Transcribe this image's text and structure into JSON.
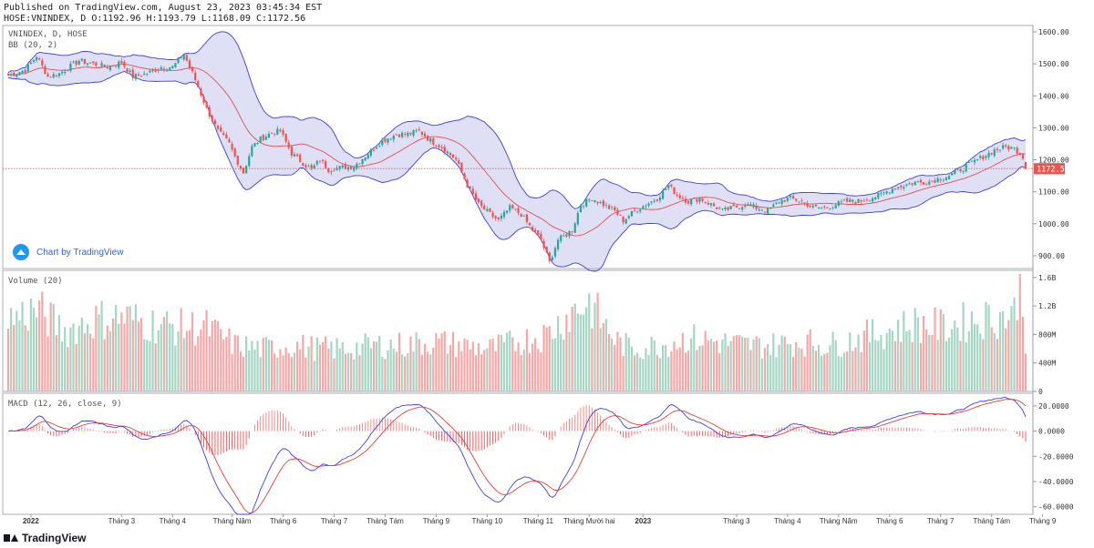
{
  "header": {
    "published": "Published on TradingView.com, August 23, 2023 03:45:34 EST",
    "ohlc": "HOSE:VNINDEX, D O:1192.96 H:1193.79 L:1168.09 C:1172.56"
  },
  "branding": {
    "watermark": "Chart by TradingView",
    "footer": "TradingView"
  },
  "colors": {
    "up": "#26a69a",
    "down": "#ef5350",
    "bb_fill": "#b8b8e8",
    "bb_band": "#3f3fd9",
    "bb_basis": "#e05050",
    "macd": "#3f3fd9",
    "signal": "#e04040",
    "price_tag": "#ef5350"
  },
  "chart_data": [
    {
      "type": "line",
      "pane": "price",
      "legend": [
        "VNINDEX, D, HOSE",
        "BB (20, 2)"
      ],
      "last_price_label": "1172.56",
      "y_ticks": [
        "1600.00",
        "1500.00",
        "1400.00",
        "1300.00",
        "1200.00",
        "1100.00",
        "1000.00",
        "900.00"
      ],
      "y_tick_values": [
        1600,
        1500,
        1400,
        1300,
        1200,
        1100,
        1000,
        900
      ],
      "ylim": [
        860,
        1620
      ],
      "x_ticks": [
        "2022",
        "Tháng 3",
        "Tháng 4",
        "Tháng Năm",
        "Tháng 6",
        "Tháng 7",
        "Tháng Tám",
        "Tháng 9",
        "Tháng 10",
        "Tháng 11",
        "Tháng Mười hai",
        "2023",
        "Tháng 3",
        "Tháng 4",
        "Tháng Năm",
        "Tháng 6",
        "Tháng 7",
        "Tháng Tám",
        "Tháng 9"
      ],
      "x_tick_index": [
        8,
        40,
        58,
        79,
        97,
        115,
        133,
        151,
        169,
        187,
        205,
        224,
        257,
        275,
        293,
        311,
        329,
        347,
        365
      ],
      "close_anchors": [
        [
          0,
          1465
        ],
        [
          6,
          1480
        ],
        [
          10,
          1525
        ],
        [
          14,
          1460
        ],
        [
          18,
          1470
        ],
        [
          25,
          1510
        ],
        [
          30,
          1500
        ],
        [
          35,
          1490
        ],
        [
          40,
          1505
        ],
        [
          44,
          1460
        ],
        [
          49,
          1470
        ],
        [
          54,
          1490
        ],
        [
          58,
          1490
        ],
        [
          62,
          1530
        ],
        [
          66,
          1450
        ],
        [
          70,
          1360
        ],
        [
          74,
          1290
        ],
        [
          78,
          1250
        ],
        [
          80,
          1210
        ],
        [
          83,
          1160
        ],
        [
          86,
          1240
        ],
        [
          89,
          1265
        ],
        [
          93,
          1285
        ],
        [
          96,
          1290
        ],
        [
          100,
          1220
        ],
        [
          104,
          1190
        ],
        [
          107,
          1170
        ],
        [
          110,
          1200
        ],
        [
          113,
          1170
        ],
        [
          117,
          1175
        ],
        [
          122,
          1180
        ],
        [
          127,
          1220
        ],
        [
          132,
          1260
        ],
        [
          137,
          1280
        ],
        [
          141,
          1280
        ],
        [
          145,
          1290
        ],
        [
          149,
          1260
        ],
        [
          153,
          1240
        ],
        [
          158,
          1200
        ],
        [
          162,
          1120
        ],
        [
          166,
          1060
        ],
        [
          170,
          1030
        ],
        [
          173,
          1010
        ],
        [
          177,
          1050
        ],
        [
          181,
          1030
        ],
        [
          185,
          980
        ],
        [
          188,
          950
        ],
        [
          191,
          880
        ],
        [
          194,
          950
        ],
        [
          196,
          960
        ],
        [
          199,
          980
        ],
        [
          202,
          1060
        ],
        [
          206,
          1080
        ],
        [
          210,
          1060
        ],
        [
          214,
          1040
        ],
        [
          217,
          1010
        ],
        [
          221,
          1040
        ],
        [
          225,
          1060
        ],
        [
          229,
          1080
        ],
        [
          233,
          1120
        ],
        [
          236,
          1090
        ],
        [
          240,
          1070
        ],
        [
          244,
          1080
        ],
        [
          248,
          1060
        ],
        [
          252,
          1040
        ],
        [
          256,
          1050
        ],
        [
          260,
          1060
        ],
        [
          264,
          1050
        ],
        [
          268,
          1040
        ],
        [
          272,
          1070
        ],
        [
          276,
          1080
        ],
        [
          280,
          1070
        ],
        [
          284,
          1050
        ],
        [
          288,
          1050
        ],
        [
          292,
          1060
        ],
        [
          296,
          1070
        ],
        [
          300,
          1070
        ],
        [
          304,
          1080
        ],
        [
          308,
          1090
        ],
        [
          312,
          1110
        ],
        [
          316,
          1120
        ],
        [
          320,
          1130
        ],
        [
          324,
          1130
        ],
        [
          328,
          1140
        ],
        [
          332,
          1150
        ],
        [
          336,
          1170
        ],
        [
          340,
          1190
        ],
        [
          344,
          1210
        ],
        [
          348,
          1230
        ],
        [
          352,
          1240
        ],
        [
          355,
          1235
        ],
        [
          357,
          1220
        ],
        [
          358,
          1210
        ],
        [
          359,
          1172.56
        ]
      ],
      "bollinger": {
        "period": 20,
        "mult": 2
      }
    },
    {
      "type": "bar",
      "pane": "volume",
      "legend": [
        "Volume (20)"
      ],
      "y_ticks": [
        "1.6B",
        "1.2B",
        "800M",
        "400M",
        "0"
      ],
      "y_tick_values": [
        1600,
        1200,
        800,
        400,
        0
      ],
      "unit": "M",
      "ylim": [
        0,
        1700
      ],
      "volume_anchors": [
        [
          0,
          1000
        ],
        [
          10,
          1150
        ],
        [
          20,
          850
        ],
        [
          30,
          1000
        ],
        [
          40,
          1050
        ],
        [
          50,
          950
        ],
        [
          60,
          900
        ],
        [
          70,
          900
        ],
        [
          80,
          650
        ],
        [
          90,
          600
        ],
        [
          100,
          650
        ],
        [
          110,
          600
        ],
        [
          120,
          600
        ],
        [
          130,
          650
        ],
        [
          140,
          650
        ],
        [
          150,
          700
        ],
        [
          160,
          650
        ],
        [
          170,
          600
        ],
        [
          180,
          700
        ],
        [
          190,
          800
        ],
        [
          200,
          1150
        ],
        [
          205,
          1250
        ],
        [
          210,
          950
        ],
        [
          215,
          700
        ],
        [
          220,
          600
        ],
        [
          230,
          650
        ],
        [
          240,
          750
        ],
        [
          250,
          700
        ],
        [
          260,
          650
        ],
        [
          270,
          650
        ],
        [
          280,
          700
        ],
        [
          290,
          650
        ],
        [
          300,
          750
        ],
        [
          310,
          850
        ],
        [
          320,
          950
        ],
        [
          330,
          900
        ],
        [
          340,
          1000
        ],
        [
          350,
          1050
        ],
        [
          355,
          1100
        ],
        [
          357,
          1650
        ],
        [
          359,
          750
        ]
      ]
    },
    {
      "type": "line",
      "pane": "macd",
      "legend": [
        "MACD (12, 26, close, 9)"
      ],
      "y_ticks": [
        "20.0000",
        "0.0000",
        "-20.0000",
        "-40.0000",
        "-60.0000"
      ],
      "y_tick_values": [
        20,
        0,
        -20,
        -40,
        -60
      ],
      "ylim": [
        -66,
        30
      ],
      "series": [
        {
          "name": "MACD"
        },
        {
          "name": "Signal"
        },
        {
          "name": "Histogram"
        }
      ]
    }
  ]
}
